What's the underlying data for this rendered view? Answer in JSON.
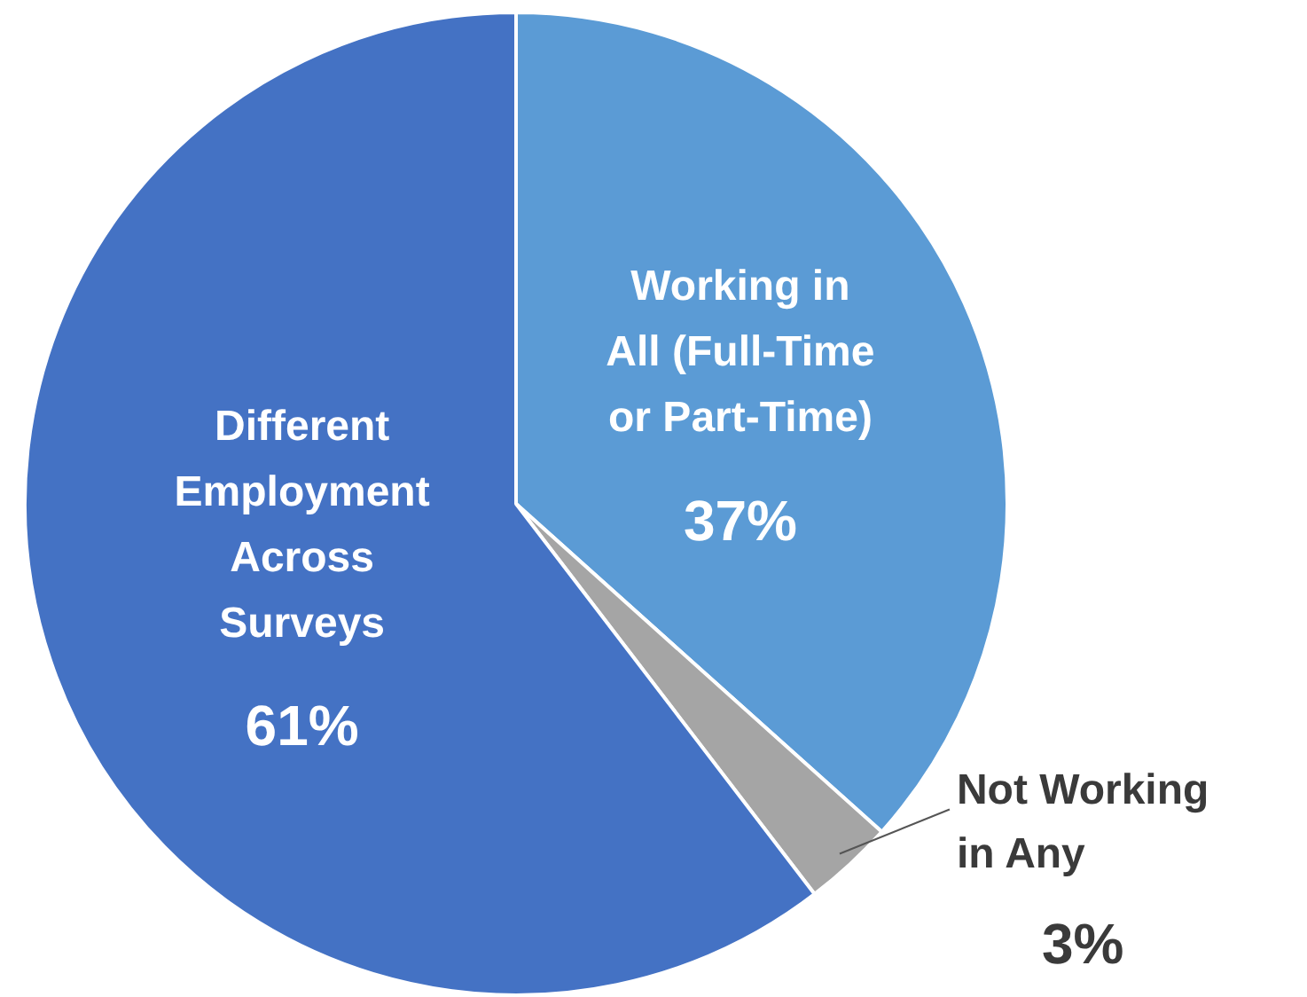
{
  "chart_data": {
    "type": "pie",
    "categories": [
      "Working in\nAll (Full-Time\nor Part-Time)",
      "Not Working\nin Any",
      "Different\nEmployment\nAcross\nSurveys"
    ],
    "values": [
      37,
      3,
      61
    ],
    "value_labels": [
      "37%",
      "3%",
      "61%"
    ],
    "colors": [
      "#5b9bd5",
      "#a5a5a5",
      "#4472c4"
    ],
    "legend": false
  }
}
